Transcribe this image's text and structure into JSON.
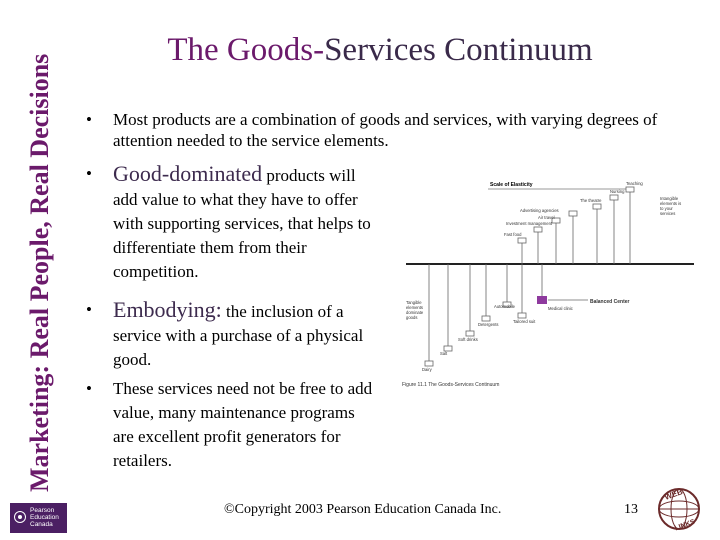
{
  "side_title": "Marketing: Real People, Real Decisions",
  "logo_text": [
    "Pearson",
    "Education",
    "Canada"
  ],
  "title": {
    "part1": "The Goods-",
    "part2": "Services Continuum"
  },
  "bullets": [
    {
      "symbol": "•",
      "text": "Most products are a combination of goods and services, with varying degrees of attention needed to the service elements."
    },
    {
      "symbol": "•",
      "lead": "Good-dominated",
      "text": " products will add value to what they have to offer with supporting services, that helps to differentiate them from their competition."
    },
    {
      "symbol": "•",
      "lead": "Embodying:",
      "text": " the inclusion of a service with a purchase of a physical good."
    },
    {
      "symbol": "•",
      "text": "These services need not be free to add value, many maintenance programs are excellent profit generators for retailers."
    }
  ],
  "footer": {
    "copyright": "©Copyright 2003 Pearson Education Canada Inc.",
    "page_number": "13",
    "web_badge_top": "WEB",
    "web_badge_bottom": "LINKS"
  },
  "figure": {
    "scale_label": "Scale of Elasticity",
    "balanced_label": "Balanced Center",
    "caption": "Figure 11.1 The Goods-Services Continuum",
    "left_note": [
      "Tangible",
      "elements",
      "dominate",
      "goods"
    ],
    "right_note": [
      "Intangible",
      "elements is",
      "to your",
      "services"
    ],
    "items_above": [
      "Teaching",
      "Nursing",
      "The theatre",
      "Advertising agencies",
      "Air travel",
      "Investment management",
      "Fast food"
    ],
    "items_below": [
      "Tailored suit",
      "Automobile",
      "Detergents",
      "Soft drinks",
      "Salt",
      "Dairy",
      "Medical clinic"
    ]
  }
}
